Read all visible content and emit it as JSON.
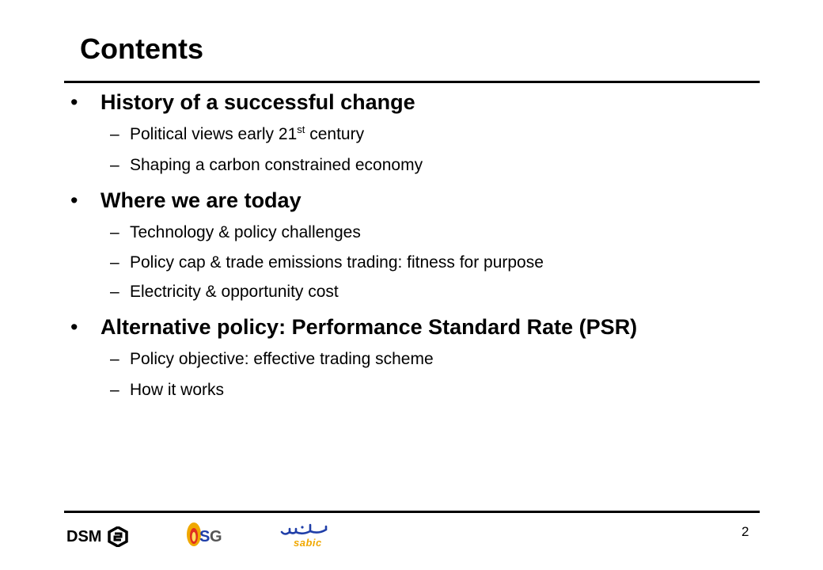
{
  "slide": {
    "title": "Contents",
    "page_number": "2"
  },
  "sections": [
    {
      "bullet_symbol": "•",
      "heading": "History of a successful change",
      "items": [
        {
          "dash": "–",
          "text_before": "Political views early 21",
          "sup": "st",
          "text_after": " century"
        },
        {
          "dash": "–",
          "text": "Shaping a carbon constrained economy"
        }
      ]
    },
    {
      "bullet_symbol": "•",
      "heading": "Where we are today",
      "items": [
        {
          "dash": "–",
          "text": "Technology & policy challenges"
        },
        {
          "dash": "–",
          "text": "Policy cap & trade emissions trading: fitness for purpose"
        },
        {
          "dash": "–",
          "text": "Electricity & opportunity cost"
        }
      ]
    },
    {
      "bullet_symbol": "•",
      "heading": "Alternative policy: Performance Standard Rate (PSR)",
      "items": [
        {
          "dash": "–",
          "text": "Policy objective: effective trading scheme"
        },
        {
          "dash": "–",
          "text": "How it works"
        }
      ]
    }
  ],
  "footer": {
    "logos": [
      {
        "name": "dsm-logo",
        "text": "DSM",
        "color": "#000000"
      },
      {
        "name": "usg-logo",
        "color": "#e8a020"
      },
      {
        "name": "sabic-logo",
        "color": "#1f3ea8"
      }
    ]
  }
}
